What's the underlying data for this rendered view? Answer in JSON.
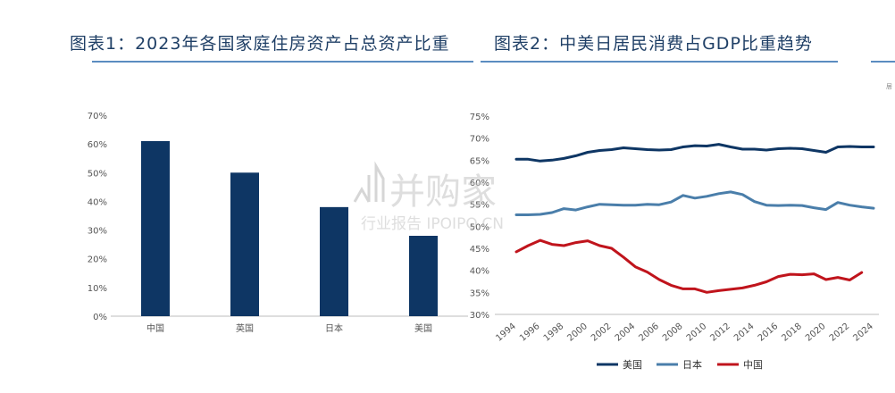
{
  "charts": {
    "left": {
      "title": "图表1：2023年各国家庭住房资产占总资产比重"
    },
    "right": {
      "title": "图表2：中美日居民消费占GDP比重趋势"
    }
  },
  "edge_text": "居",
  "watermark": {
    "line1": "并购家",
    "line2": "行业报告 IPOIPO.CN"
  },
  "colors": {
    "bar": "#0e3664",
    "us": "#0e3664",
    "japan": "#4a7eaa",
    "china": "#c0141c",
    "rule": "#5b8cc0"
  },
  "chart_data": [
    {
      "type": "bar",
      "title": "图表1：2023年各国家庭住房资产占总资产比重",
      "categories": [
        "中国",
        "英国",
        "日本",
        "美国"
      ],
      "values": [
        61,
        50,
        38,
        28
      ],
      "ylim": [
        0,
        70
      ],
      "yticks": [
        "0%",
        "10%",
        "20%",
        "30%",
        "40%",
        "50%",
        "60%",
        "70%"
      ],
      "grid": false
    },
    {
      "type": "line",
      "title": "图表2：中美日居民消费占GDP比重趋势",
      "x": [
        1994,
        1995,
        1996,
        1997,
        1998,
        1999,
        2000,
        2001,
        2002,
        2003,
        2004,
        2005,
        2006,
        2007,
        2008,
        2009,
        2010,
        2011,
        2012,
        2013,
        2014,
        2015,
        2016,
        2017,
        2018,
        2019,
        2020,
        2021,
        2022,
        2023,
        2024
      ],
      "xticks": [
        "1994",
        "1996",
        "1998",
        "2000",
        "2002",
        "2004",
        "2006",
        "2008",
        "2010",
        "2012",
        "2014",
        "2016",
        "2018",
        "2020",
        "2022",
        "2024"
      ],
      "ylim": [
        30,
        75
      ],
      "yticks": [
        "30%",
        "35%",
        "40%",
        "45%",
        "50%",
        "55%",
        "60%",
        "65%",
        "70%",
        "75%"
      ],
      "legend_position": "bottom",
      "series": [
        {
          "name": "美国",
          "color": "#0e3664",
          "values": [
            65.2,
            65.2,
            64.8,
            65.0,
            65.4,
            66.0,
            66.8,
            67.2,
            67.4,
            67.8,
            67.6,
            67.4,
            67.3,
            67.4,
            68.0,
            68.3,
            68.2,
            68.6,
            68.0,
            67.5,
            67.5,
            67.3,
            67.6,
            67.7,
            67.6,
            67.2,
            66.8,
            68.0,
            68.1,
            68.0,
            68.0
          ]
        },
        {
          "name": "日本",
          "color": "#4a7eaa",
          "values": [
            52.6,
            52.6,
            52.7,
            53.1,
            54.0,
            53.7,
            54.4,
            55.0,
            54.9,
            54.8,
            54.8,
            55.0,
            54.9,
            55.5,
            57.0,
            56.4,
            56.8,
            57.4,
            57.8,
            57.2,
            55.6,
            54.8,
            54.7,
            54.8,
            54.7,
            54.2,
            53.8,
            55.4,
            54.8,
            54.4,
            54.1
          ]
        },
        {
          "name": "中国",
          "color": "#c0141c",
          "values": [
            44.2,
            45.6,
            46.8,
            45.9,
            45.6,
            46.3,
            46.7,
            45.6,
            45.0,
            43.0,
            40.8,
            39.6,
            37.9,
            36.6,
            35.8,
            35.8,
            35.0,
            35.4,
            35.7,
            36.0,
            36.6,
            37.4,
            38.6,
            39.1,
            39.0,
            39.2,
            37.9,
            38.4,
            37.8,
            39.5,
            null
          ]
        }
      ]
    }
  ]
}
